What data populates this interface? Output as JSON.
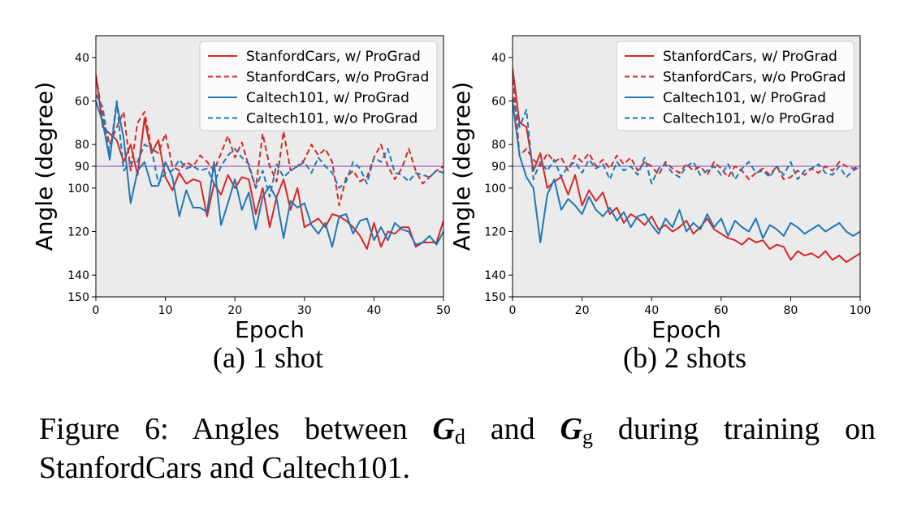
{
  "figure": {
    "caption_prefix": "Figure 6:",
    "caption_text_1": "Angles between",
    "symbol_main": "G",
    "sub_d": "d",
    "caption_and": "and",
    "sub_g": "g",
    "caption_text_2": "during training on StanfordCars and Caltech101."
  },
  "colors": {
    "red": "#d62728",
    "blue": "#1f77b4",
    "ref_line": "#9467bd",
    "plot_bg": "#ebebeb"
  },
  "chart_data": [
    {
      "type": "line",
      "subcaption": "(a) 1 shot",
      "xlabel": "Epoch",
      "ylabel": "Angle (degree)",
      "xlim": [
        0,
        50
      ],
      "ylim": [
        150,
        30
      ],
      "y_inverted": true,
      "xticks": [
        0,
        10,
        20,
        30,
        40,
        50
      ],
      "yticks": [
        40,
        60,
        80,
        90,
        100,
        120,
        140,
        150
      ],
      "reference_line": 90,
      "legend_position": "top-right",
      "grid": false,
      "x": [
        0,
        1,
        2,
        3,
        4,
        5,
        6,
        7,
        8,
        9,
        10,
        11,
        12,
        13,
        14,
        15,
        16,
        17,
        18,
        19,
        20,
        21,
        22,
        23,
        24,
        25,
        26,
        27,
        28,
        29,
        30,
        31,
        32,
        33,
        34,
        35,
        36,
        37,
        38,
        39,
        40,
        41,
        42,
        43,
        44,
        45,
        46,
        47,
        48,
        49,
        50
      ],
      "series": [
        {
          "name": "StanfordCars, w/ ProGrad",
          "style": "solid",
          "color": "#d62728",
          "values": [
            48,
            72,
            75,
            78,
            88,
            80,
            94,
            68,
            84,
            78,
            95,
            101,
            93,
            98,
            96,
            97,
            113,
            98,
            103,
            94,
            100,
            95,
            96,
            112,
            100,
            118,
            104,
            96,
            110,
            100,
            118,
            116,
            114,
            118,
            112,
            113,
            115,
            118,
            122,
            128,
            116,
            127,
            120,
            121,
            118,
            118,
            127,
            125,
            125,
            125,
            115
          ]
        },
        {
          "name": "StanfordCars, w/o ProGrad",
          "style": "dashed",
          "color": "#d62728",
          "values": [
            48,
            68,
            80,
            72,
            65,
            92,
            70,
            65,
            82,
            84,
            75,
            90,
            92,
            88,
            90,
            85,
            88,
            92,
            84,
            76,
            86,
            79,
            90,
            100,
            75,
            90,
            97,
            74,
            92,
            90,
            87,
            80,
            85,
            82,
            88,
            108,
            95,
            92,
            97,
            95,
            86,
            80,
            90,
            96,
            91,
            82,
            92,
            98,
            95,
            92,
            90
          ]
        },
        {
          "name": "Caltech101, w/ ProGrad",
          "style": "solid",
          "color": "#1f77b4",
          "values": [
            60,
            70,
            87,
            61,
            77,
            107,
            92,
            88,
            99,
            99,
            88,
            95,
            113,
            101,
            109,
            109,
            111,
            88,
            117,
            107,
            96,
            110,
            102,
            119,
            104,
            99,
            105,
            123,
            106,
            109,
            107,
            117,
            121,
            116,
            127,
            113,
            112,
            121,
            115,
            114,
            124,
            118,
            124,
            116,
            119,
            120,
            126,
            125,
            122,
            126,
            120
          ]
        },
        {
          "name": "Caltech101, w/o ProGrad",
          "style": "dashed",
          "color": "#1f77b4",
          "values": [
            57,
            63,
            85,
            60,
            92,
            88,
            88,
            80,
            82,
            98,
            93,
            92,
            87,
            91,
            90,
            92,
            91,
            98,
            90,
            85,
            82,
            86,
            89,
            100,
            92,
            104,
            89,
            95,
            92,
            90,
            88,
            93,
            86,
            90,
            93,
            100,
            97,
            88,
            91,
            98,
            86,
            88,
            82,
            93,
            94,
            97,
            93,
            94,
            95,
            92,
            93
          ]
        }
      ]
    },
    {
      "type": "line",
      "subcaption": "(b) 2 shots",
      "xlabel": "Epoch",
      "ylabel": "Angle (degree)",
      "xlim": [
        0,
        100
      ],
      "ylim": [
        150,
        30
      ],
      "y_inverted": true,
      "xticks": [
        0,
        20,
        40,
        60,
        80,
        100
      ],
      "yticks": [
        40,
        60,
        80,
        90,
        100,
        120,
        140,
        150
      ],
      "reference_line": 90,
      "legend_position": "top-right",
      "grid": false,
      "x": [
        0,
        2,
        4,
        6,
        8,
        10,
        12,
        14,
        16,
        18,
        20,
        22,
        24,
        26,
        28,
        30,
        32,
        34,
        36,
        38,
        40,
        42,
        44,
        46,
        48,
        50,
        52,
        54,
        56,
        58,
        60,
        62,
        64,
        66,
        68,
        70,
        72,
        74,
        76,
        78,
        80,
        82,
        84,
        86,
        88,
        90,
        92,
        94,
        96,
        98,
        100
      ],
      "series": [
        {
          "name": "StanfordCars, w/ ProGrad",
          "style": "solid",
          "color": "#d62728",
          "values": [
            45,
            70,
            72,
            92,
            84,
            100,
            97,
            95,
            103,
            94,
            108,
            101,
            106,
            102,
            112,
            109,
            116,
            112,
            114,
            117,
            113,
            119,
            117,
            120,
            118,
            115,
            121,
            118,
            114,
            119,
            121,
            123,
            124,
            126,
            123,
            125,
            124,
            128,
            126,
            127,
            133,
            129,
            131,
            130,
            132,
            129,
            133,
            131,
            134,
            132,
            130
          ]
        },
        {
          "name": "StanfordCars, w/o ProGrad",
          "style": "dashed",
          "color": "#d62728",
          "values": [
            46,
            85,
            82,
            87,
            90,
            84,
            88,
            86,
            92,
            85,
            88,
            84,
            90,
            87,
            91,
            85,
            89,
            86,
            92,
            88,
            90,
            94,
            88,
            91,
            93,
            89,
            92,
            90,
            94,
            88,
            91,
            95,
            90,
            92,
            96,
            93,
            91,
            94,
            90,
            96,
            95,
            92,
            94,
            91,
            93,
            90,
            92,
            88,
            90,
            91,
            90
          ]
        },
        {
          "name": "Caltech101, w/ ProGrad",
          "style": "solid",
          "color": "#1f77b4",
          "values": [
            60,
            85,
            95,
            100,
            125,
            103,
            96,
            110,
            105,
            108,
            112,
            104,
            110,
            113,
            109,
            115,
            111,
            118,
            113,
            112,
            117,
            121,
            114,
            118,
            110,
            120,
            116,
            119,
            112,
            118,
            114,
            122,
            115,
            118,
            120,
            114,
            123,
            117,
            119,
            122,
            116,
            118,
            121,
            119,
            117,
            120,
            118,
            116,
            120,
            122,
            120
          ]
        },
        {
          "name": "Caltech101, w/o ProGrad",
          "style": "dashed",
          "color": "#1f77b4",
          "values": [
            58,
            72,
            64,
            96,
            88,
            92,
            87,
            95,
            90,
            88,
            93,
            87,
            91,
            89,
            96,
            88,
            92,
            90,
            94,
            86,
            98,
            91,
            89,
            93,
            95,
            90,
            88,
            94,
            92,
            90,
            94,
            89,
            96,
            91,
            88,
            93,
            92,
            95,
            90,
            94,
            88,
            96,
            92,
            91,
            89,
            93,
            94,
            90,
            95,
            92,
            90
          ]
        }
      ]
    }
  ]
}
